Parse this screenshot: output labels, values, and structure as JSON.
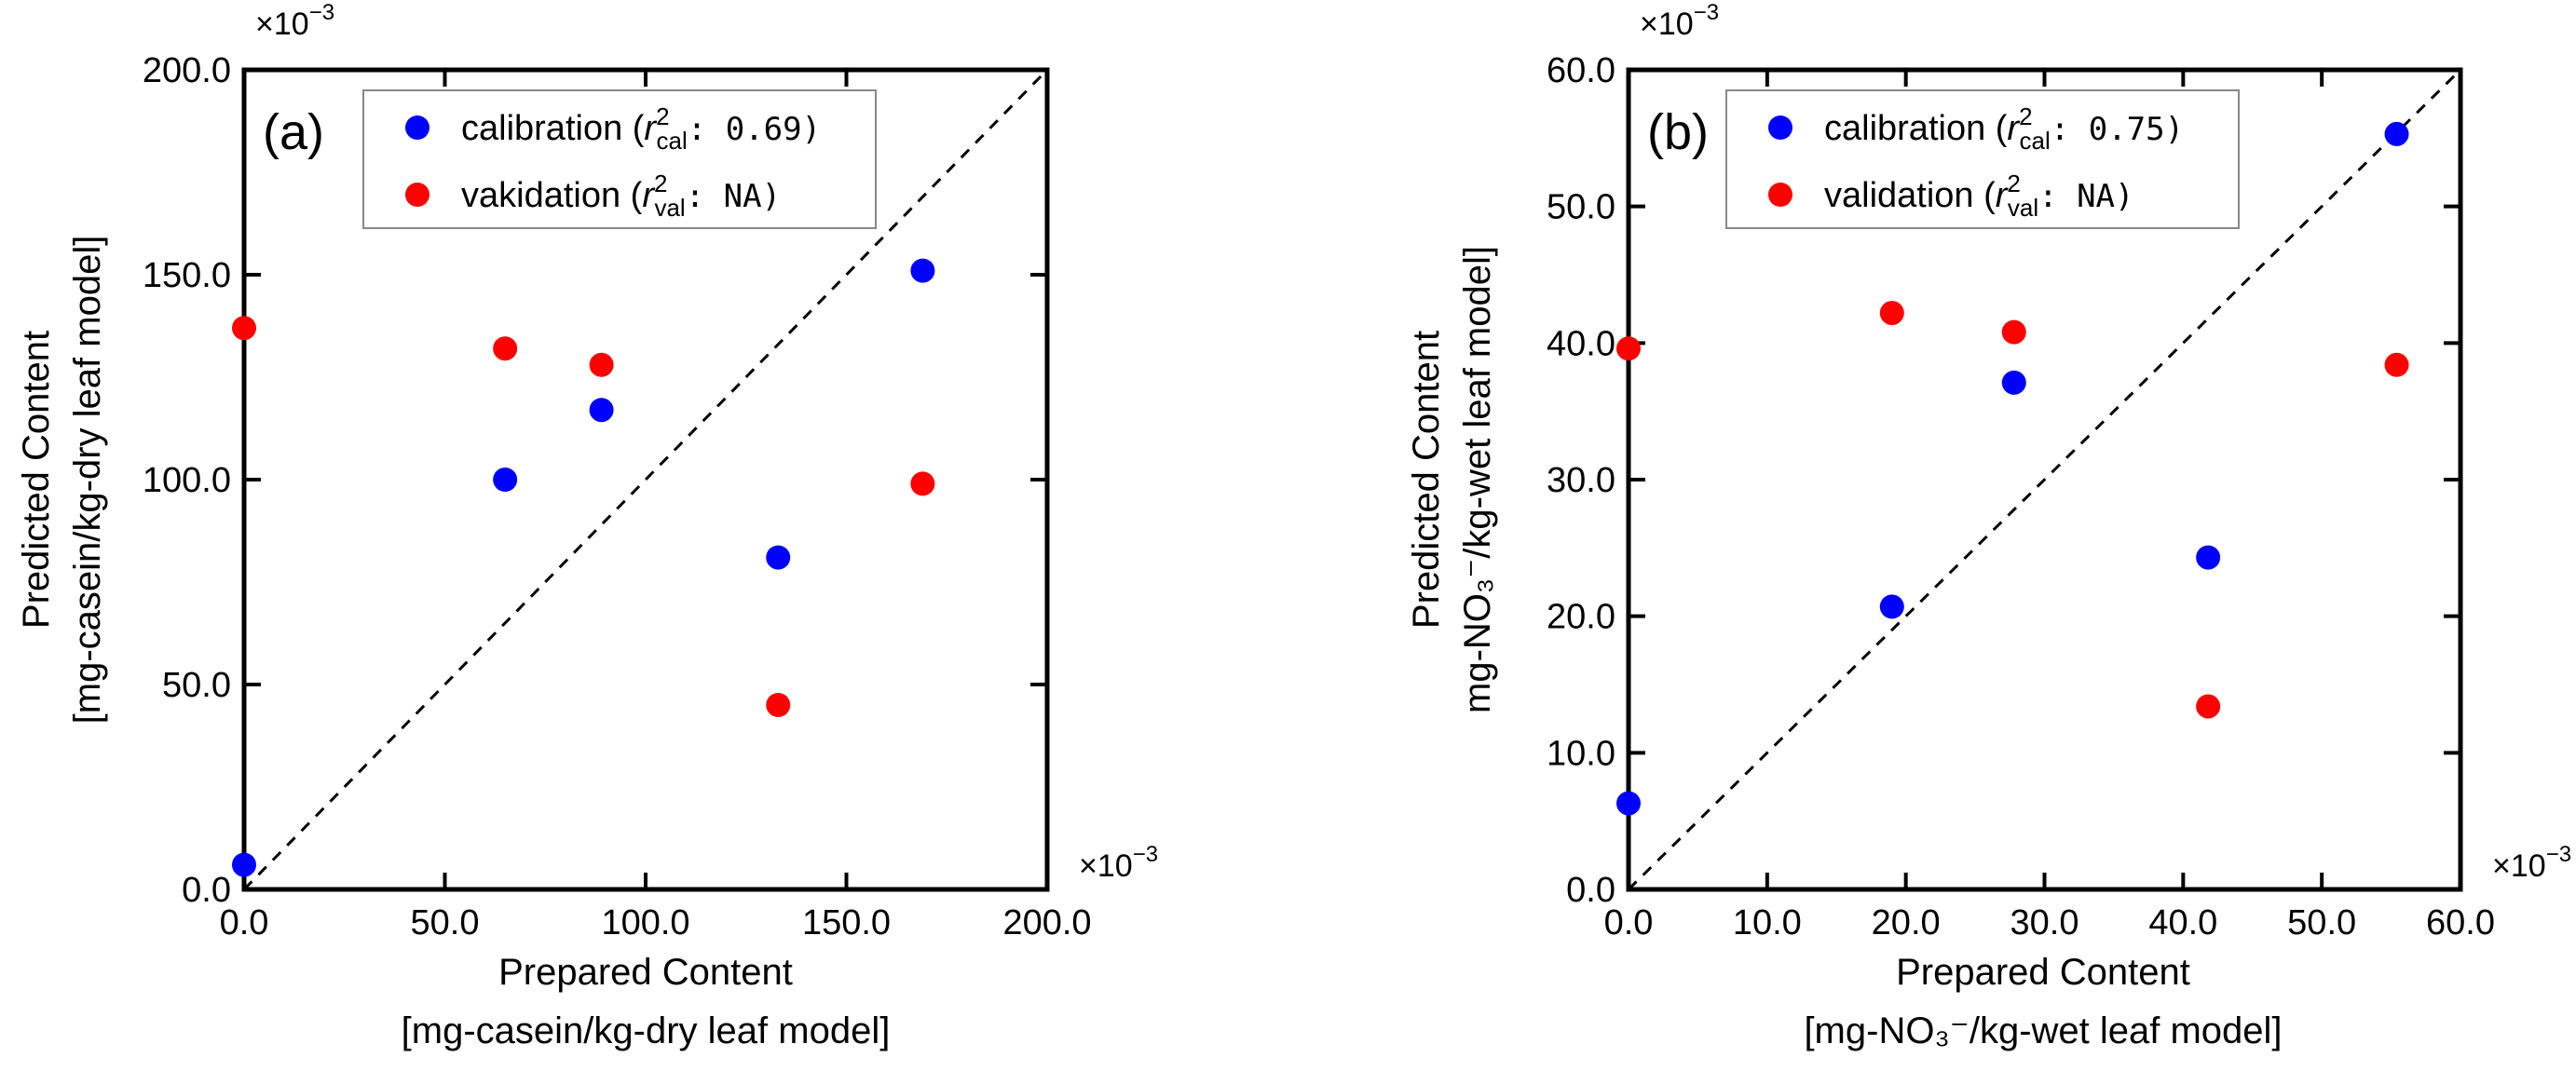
{
  "chart_data": [
    {
      "type": "scatter",
      "panel_label": "(a)",
      "xlabel": "Prepared Content",
      "xlabel_unit": "[mg-casein/kg-dry leaf model]",
      "ylabel": "Predicted Content",
      "ylabel_unit": "[mg-casein/kg-dry leaf model]",
      "x_multiplier": "×10",
      "y_multiplier": "×10",
      "multiplier_exp": "−3",
      "xlim": [
        0,
        200
      ],
      "ylim": [
        0,
        200
      ],
      "xticks": [
        0,
        50,
        100,
        150,
        200
      ],
      "yticks": [
        0,
        50,
        100,
        150,
        200
      ],
      "xtick_labels": [
        "0.0",
        "50.0",
        "100.0",
        "150.0",
        "200.0"
      ],
      "ytick_labels": [
        "0.0",
        "50.0",
        "100.0",
        "150.0",
        "200.0"
      ],
      "reference_line": "y = x",
      "legend_position": "top-center",
      "series": [
        {
          "name": "calibration",
          "color": "#0000ff",
          "legend_text": "calibration (",
          "stat_symbol": "r",
          "stat_sup": "2",
          "stat_sub": "cal",
          "stat_value": ": 0.69)",
          "x": [
            0,
            65,
            89,
            133,
            169
          ],
          "y": [
            6,
            100,
            117,
            81,
            151
          ]
        },
        {
          "name": "vakidation",
          "color": "#ff0000",
          "legend_text": "vakidation (",
          "stat_symbol": "r",
          "stat_sup": "2",
          "stat_sub": "val",
          "stat_value": ": NA)",
          "x": [
            0,
            65,
            89,
            133,
            169
          ],
          "y": [
            137,
            132,
            128,
            45,
            99
          ]
        }
      ]
    },
    {
      "type": "scatter",
      "panel_label": "(b)",
      "xlabel": "Prepared Content",
      "xlabel_unit": "[mg-NO₃⁻/kg-wet leaf model]",
      "ylabel": "Predicted Content",
      "ylabel_unit": "mg-NO₃⁻/kg-wet leaf model]",
      "x_multiplier": "×10",
      "y_multiplier": "×10",
      "multiplier_exp": "−3",
      "xlim": [
        0,
        60
      ],
      "ylim": [
        0,
        60
      ],
      "xticks": [
        0,
        10,
        20,
        30,
        40,
        50,
        60
      ],
      "yticks": [
        0,
        10,
        20,
        30,
        40,
        50,
        60
      ],
      "xtick_labels": [
        "0.0",
        "10.0",
        "20.0",
        "30.0",
        "40.0",
        "50.0",
        "60.0"
      ],
      "ytick_labels": [
        "0.0",
        "10.0",
        "20.0",
        "30.0",
        "40.0",
        "50.0",
        "60.0"
      ],
      "reference_line": "y = x",
      "legend_position": "top-center",
      "series": [
        {
          "name": "calibration",
          "color": "#0000ff",
          "legend_text": "calibration (",
          "stat_symbol": "r",
          "stat_sup": "2",
          "stat_sub": "cal",
          "stat_value": ": 0.75)",
          "x": [
            0,
            19,
            27.8,
            41.8,
            55.4
          ],
          "y": [
            6.3,
            20.7,
            37.1,
            24.3,
            55.3
          ]
        },
        {
          "name": "validation",
          "color": "#ff0000",
          "legend_text": "validation (",
          "stat_symbol": "r",
          "stat_sup": "2",
          "stat_sub": "val",
          "stat_value": ": NA)",
          "x": [
            0,
            19,
            27.8,
            41.8,
            55.4
          ],
          "y": [
            39.6,
            42.2,
            40.8,
            13.4,
            38.4
          ]
        }
      ]
    }
  ]
}
